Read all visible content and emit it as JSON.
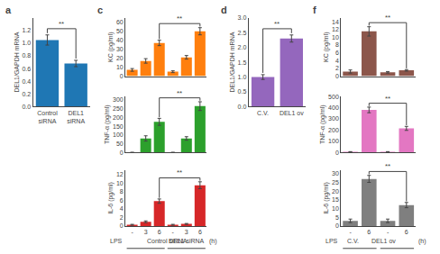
{
  "chart_data": [
    {
      "type": "bar",
      "panel": "a",
      "ylabel": "DEL1/GAPDH mRNA",
      "categories": [
        "Control\nsiRNA",
        "DEL1\nsiRNA"
      ],
      "values": [
        1.05,
        0.68
      ],
      "errors": [
        0.08,
        0.05
      ],
      "ylim": [
        0,
        1.4
      ],
      "yticks": [
        {
          "value": 0.0,
          "label": "0.0"
        },
        0.2,
        0.4,
        0.6,
        0.8,
        {
          "value": 1.0,
          "label": "1.0"
        },
        1.2
      ],
      "grid": false,
      "brackets": [
        {
          "from": 0,
          "to": 1,
          "label": "**"
        }
      ]
    },
    {
      "type": "bar",
      "panel": "c",
      "ylabel": "KC (pg/ml)",
      "values": [
        7,
        17,
        37,
        5,
        21,
        50
      ],
      "errors": [
        1.5,
        2.5,
        3,
        1,
        2,
        4
      ],
      "ylim": [
        0,
        65
      ],
      "yticks": [
        0,
        10,
        20,
        30,
        40,
        50,
        60
      ],
      "grid": false,
      "tick_labels": "y",
      "brackets": [
        {
          "from": 2,
          "to": 5,
          "label": "**"
        }
      ]
    },
    {
      "type": "bar",
      "ylabel": "TNF-α (pg/ml)",
      "values": [
        0,
        80,
        175,
        0,
        80,
        265
      ],
      "errors": [
        0,
        15,
        20,
        0,
        10,
        25
      ],
      "ylim": [
        0,
        320
      ],
      "yticks": [
        0,
        50,
        100,
        150,
        200,
        250,
        300
      ],
      "grid": false,
      "tick_labels": "y",
      "brackets": [
        {
          "from": 2,
          "to": 5,
          "label": "**"
        }
      ]
    },
    {
      "type": "bar",
      "ylabel": "IL-6 (pg/ml)",
      "categories": [
        "-",
        "3",
        "6",
        "-",
        "3",
        "6"
      ],
      "values": [
        0.3,
        1.0,
        5.8,
        0.3,
        0.5,
        9.5
      ],
      "errors": [
        0.1,
        0.2,
        0.5,
        0.1,
        0.1,
        0.8
      ],
      "ylim": [
        0,
        13
      ],
      "yticks": [
        0,
        2,
        4,
        6,
        8,
        10,
        12
      ],
      "grid": false,
      "brackets": [
        {
          "from": 2,
          "to": 5,
          "label": "**"
        }
      ],
      "groups": [
        {
          "label": "Control siRNA",
          "from": 0,
          "to": 2
        },
        {
          "label": "DEL1 siRNA",
          "from": 3,
          "to": 5
        }
      ],
      "row_label": "LPS",
      "row_unit": "(h)"
    },
    {
      "type": "bar",
      "panel": "d",
      "ylabel": "DEL1/GAPDH mRNA",
      "categories": [
        "C.V.",
        "DEL1 ov"
      ],
      "values": [
        1.0,
        2.3
      ],
      "errors": [
        0.08,
        0.12
      ],
      "ylim": [
        0,
        3.0
      ],
      "yticks": [
        {
          "value": 0.0,
          "label": "0.0"
        },
        0.5,
        {
          "value": 1.0,
          "label": "1.0"
        },
        1.5,
        {
          "value": 2.0,
          "label": "2.0"
        },
        2.5,
        {
          "value": 3.0,
          "label": "3.0"
        }
      ],
      "grid": false,
      "brackets": [
        {
          "from": 0,
          "to": 1,
          "label": "**"
        }
      ]
    },
    {
      "type": "bar",
      "panel": "f",
      "ylabel": "KC (pg/ml)",
      "values": [
        1.2,
        11.5,
        1.0,
        1.5
      ],
      "errors": [
        0.4,
        1.2,
        0.2,
        0.2
      ],
      "ylim": [
        0,
        15
      ],
      "yticks": [
        0,
        2,
        4,
        6,
        8,
        10,
        12,
        14
      ],
      "grid": false,
      "tick_labels": "y",
      "brackets": [
        {
          "from": 1,
          "to": 3,
          "label": "**"
        }
      ]
    },
    {
      "type": "bar",
      "ylabel": "TNF-α (pg/ml)",
      "values": [
        5,
        380,
        5,
        215
      ],
      "errors": [
        2,
        25,
        2,
        18
      ],
      "ylim": [
        0,
        500
      ],
      "yticks": [
        0,
        100,
        200,
        300,
        400,
        500
      ],
      "grid": false,
      "tick_labels": "y",
      "brackets": [
        {
          "from": 1,
          "to": 3,
          "label": "**"
        }
      ]
    },
    {
      "type": "bar",
      "ylabel": "IL-6 (pg/ml)",
      "categories": [
        "-",
        "6",
        "-",
        "6"
      ],
      "values": [
        3,
        27,
        3,
        12
      ],
      "errors": [
        1,
        2,
        1,
        1.5
      ],
      "ylim": [
        0,
        32
      ],
      "yticks": [
        0,
        5,
        10,
        15,
        20,
        25,
        30
      ],
      "grid": false,
      "brackets": [
        {
          "from": 1,
          "to": 3,
          "label": "**"
        }
      ],
      "groups": [
        {
          "label": "C.V.",
          "from": 0,
          "to": 1
        },
        {
          "label": "DEL1 ov",
          "from": 2,
          "to": 3
        }
      ],
      "row_label": "LPS",
      "row_unit": "(h)"
    }
  ]
}
